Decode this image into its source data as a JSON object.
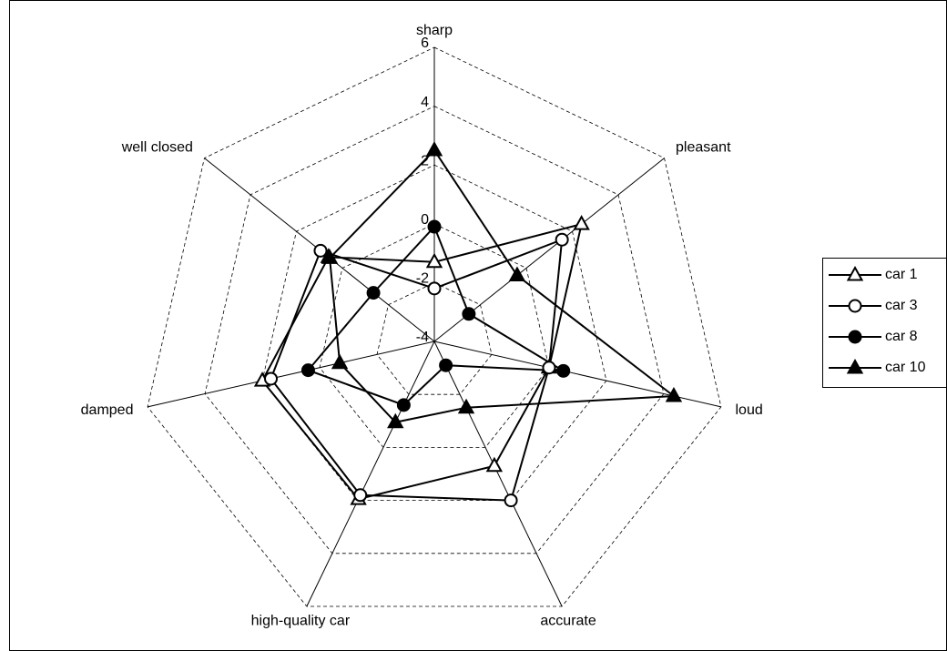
{
  "chart_data": {
    "type": "radar",
    "categories": [
      "sharp",
      "pleasant",
      "loud",
      "accurate",
      "high-quality car",
      "damped",
      "well closed"
    ],
    "rlim": [
      -4,
      6
    ],
    "rticks": [
      -4,
      -2,
      0,
      2,
      4,
      6
    ],
    "grid": true,
    "legend": "right",
    "series": [
      {
        "name": "car 1",
        "color": "#000000",
        "marker": "triangle",
        "marker_fill": "#ffffff",
        "values": [
          -1.3,
          2.4,
          0,
          0.7,
          1.95,
          2.0,
          0.6
        ]
      },
      {
        "name": "car 3",
        "color": "#000000",
        "marker": "circle",
        "marker_fill": "#ffffff",
        "values": [
          -2.2,
          1.55,
          0,
          2.0,
          1.8,
          1.7,
          0.95
        ]
      },
      {
        "name": "car 8",
        "color": "#000000",
        "marker": "circle",
        "marker_fill": "#000000",
        "values": [
          -0.1,
          -2.5,
          0.5,
          -3.1,
          -1.6,
          0.4,
          -1.35
        ]
      },
      {
        "name": "car 10",
        "color": "#000000",
        "marker": "triangle",
        "marker_fill": "#000000",
        "values": [
          2.5,
          -0.4,
          4.35,
          -1.5,
          -0.95,
          -0.7,
          0.55
        ]
      }
    ]
  }
}
